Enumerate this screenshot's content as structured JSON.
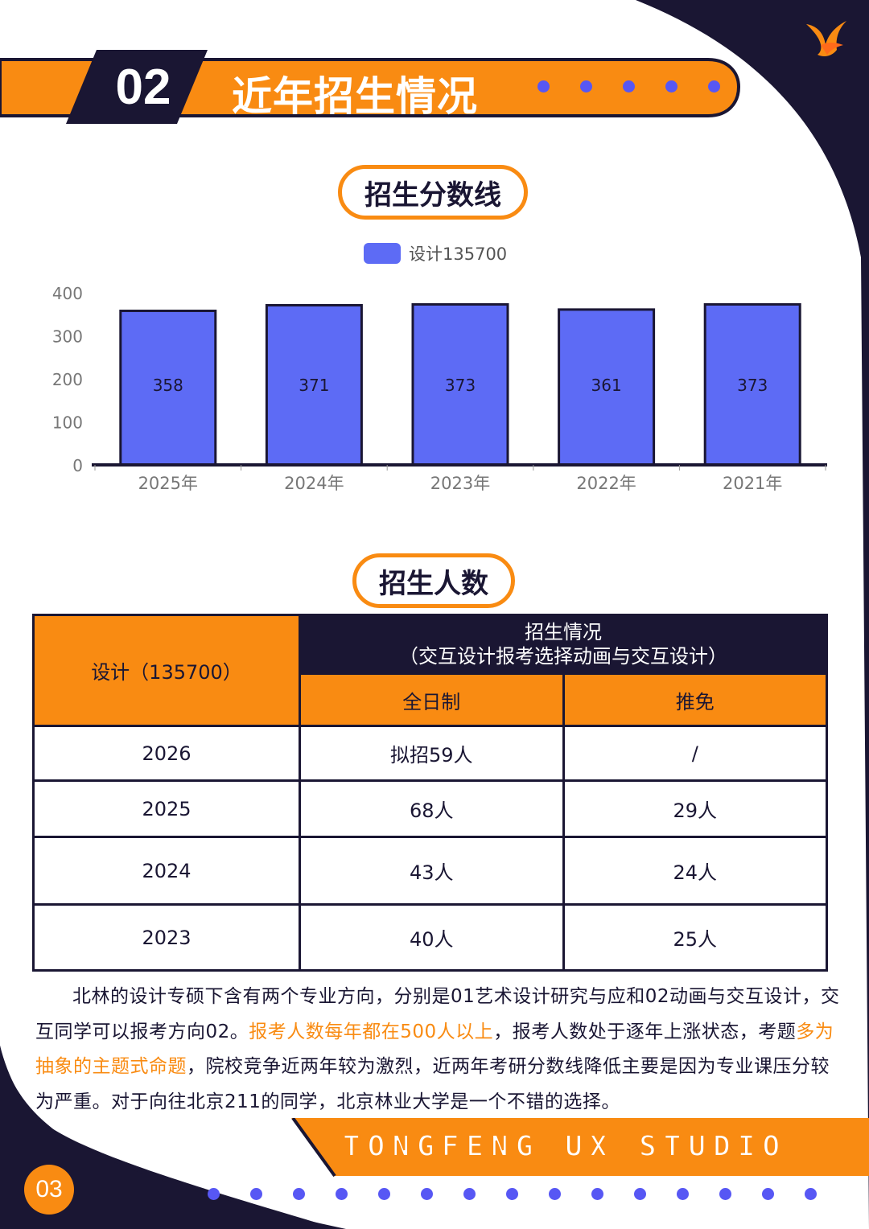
{
  "header": {
    "section_number": "02",
    "section_title": "近年招生情况"
  },
  "score_section": {
    "title": "招生分数线"
  },
  "chart_data": {
    "type": "bar",
    "categories": [
      "2025年",
      "2024年",
      "2023年",
      "2022年",
      "2021年"
    ],
    "series": [
      {
        "name": "设计135700",
        "values": [
          358,
          371,
          373,
          361,
          373
        ]
      }
    ],
    "data_labels": [
      "358",
      "371",
      "373",
      "361",
      "373"
    ],
    "y_ticks": [
      0,
      100,
      200,
      300,
      400
    ],
    "ylim": [
      0,
      400
    ],
    "legend_position": "top-center",
    "grid": false,
    "bar_color": "#5d6bf5"
  },
  "count_section": {
    "title": "招生人数",
    "table": {
      "corner_header": "设计（135700）",
      "group_header_line1": "招生情况",
      "group_header_line2": "（交互设计报考选择动画与交互设计）",
      "col1_header": "全日制",
      "col2_header": "推免",
      "rows": [
        {
          "year": "2026",
          "fulltime": "拟招59人",
          "exempt": "/"
        },
        {
          "year": "2025",
          "fulltime": "68人",
          "exempt": "29人"
        },
        {
          "year": "2024",
          "fulltime": "43人",
          "exempt": "24人"
        },
        {
          "year": "2023",
          "fulltime": "40人",
          "exempt": "25人"
        }
      ]
    }
  },
  "paragraph": {
    "part1": "北林的设计专硕下含有两个专业方向，分别是01艺术设计研究与应和02动画与交互设计，交互同学可以报考方向02。",
    "highlight1": "报考人数每年都在500人以上",
    "part2": "，报考人数处于逐年上涨状态，考题",
    "highlight2": "多为抽象的主题式命题",
    "part3": "，院校竞争近两年较为激烈，近两年考研分数线降低主要是因为专业课压分较为严重。对于向往北京211的同学，北京林业大学是一个不错的选择。"
  },
  "footer": {
    "brand": "TONGFENG UX STUDIO",
    "page_number": "03"
  },
  "colors": {
    "accent": "#f98b12",
    "dark": "#1a1633",
    "bar": "#5d6bf5",
    "dot": "#5757f4"
  }
}
